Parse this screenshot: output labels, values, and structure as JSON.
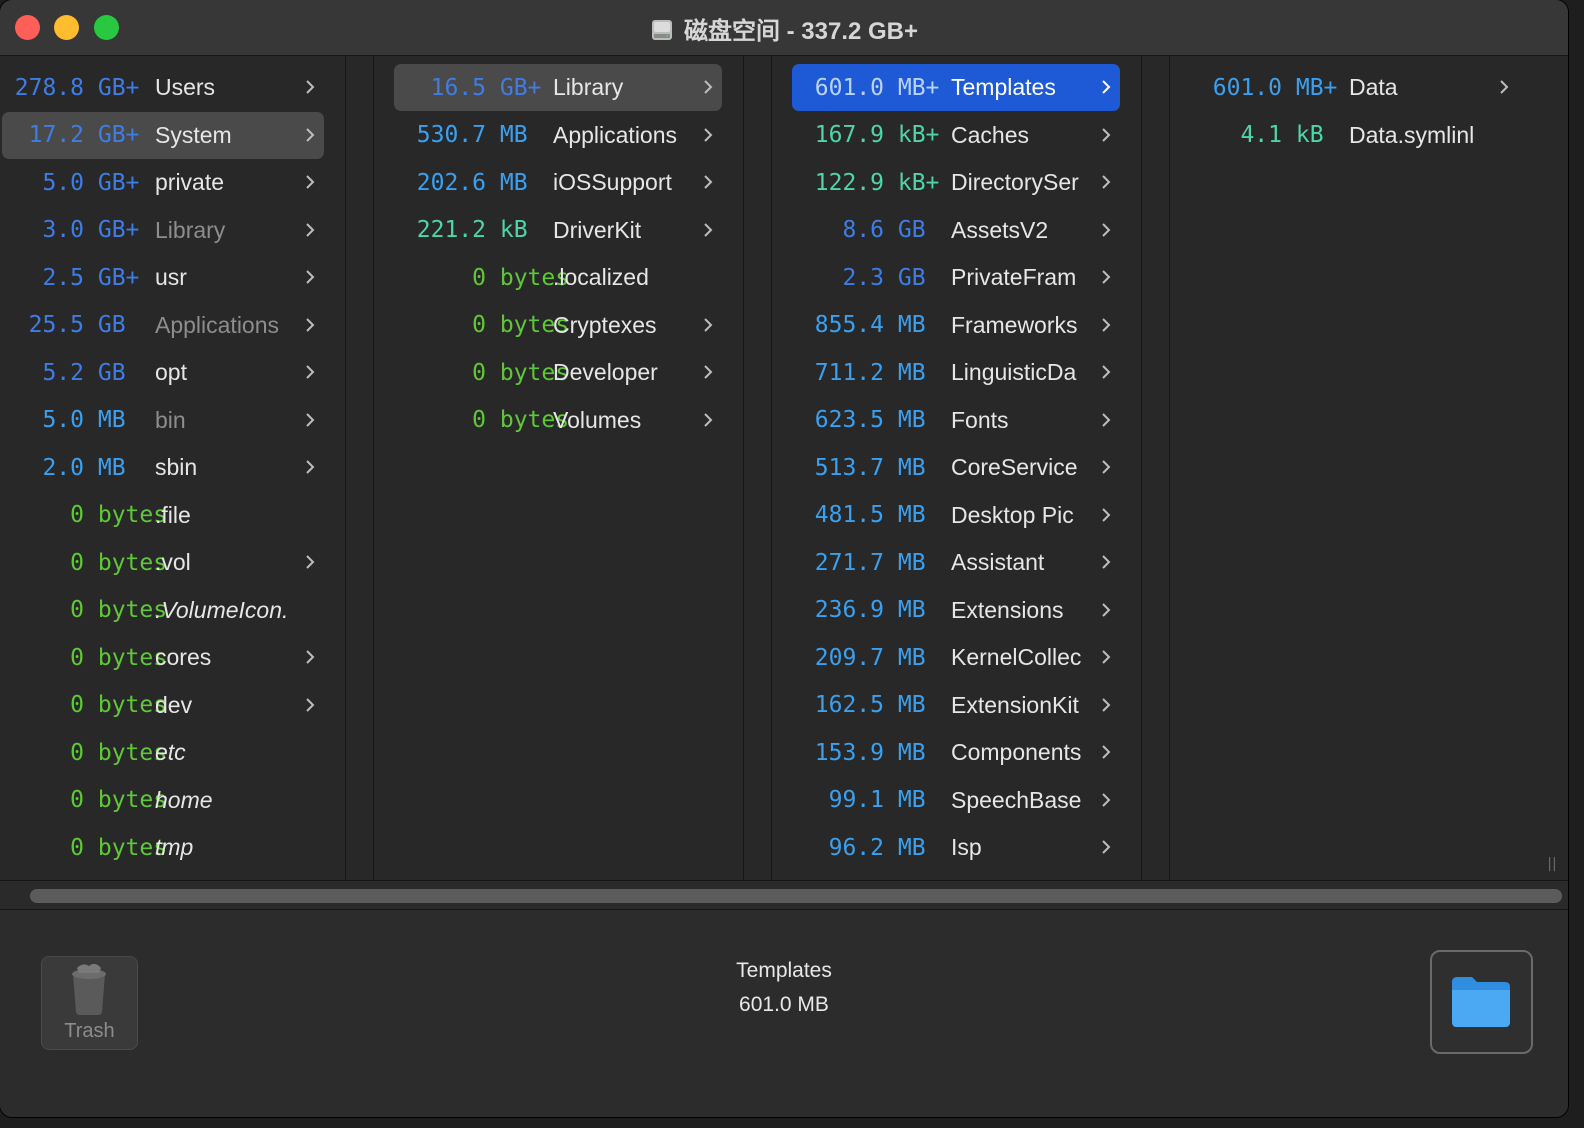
{
  "window": {
    "title": "磁盘空间 - 337.2 GB+"
  },
  "columns": [
    {
      "items": [
        {
          "size_num": "278.8",
          "unit": "GB+",
          "name": "Users",
          "chevron": true,
          "kind": "gbp"
        },
        {
          "size_num": "17.2",
          "unit": "GB+",
          "name": "System",
          "chevron": true,
          "kind": "gbp",
          "selected": "gray"
        },
        {
          "size_num": "5.0",
          "unit": "GB+",
          "name": "private",
          "chevron": true,
          "kind": "gbp"
        },
        {
          "size_num": "3.0",
          "unit": "GB+",
          "name": "Library",
          "chevron": true,
          "kind": "gbp",
          "dim": true
        },
        {
          "size_num": "2.5",
          "unit": "GB+",
          "name": "usr",
          "chevron": true,
          "kind": "gbp"
        },
        {
          "size_num": "25.5",
          "unit": "GB",
          "name": "Applications",
          "chevron": true,
          "kind": "gb",
          "dim": true
        },
        {
          "size_num": "5.2",
          "unit": "GB",
          "name": "opt",
          "chevron": true,
          "kind": "gb"
        },
        {
          "size_num": "5.0",
          "unit": "MB",
          "name": "bin",
          "chevron": true,
          "kind": "mb",
          "dim": true
        },
        {
          "size_num": "2.0",
          "unit": "MB",
          "name": "sbin",
          "chevron": true,
          "kind": "mb"
        },
        {
          "size_num": "0",
          "unit": "bytes",
          "name": ".file",
          "chevron": false,
          "kind": "b"
        },
        {
          "size_num": "0",
          "unit": "bytes",
          "name": ".vol",
          "chevron": true,
          "kind": "b"
        },
        {
          "size_num": "0",
          "unit": "bytes",
          "name": ".VolumeIcon.",
          "chevron": false,
          "kind": "b",
          "italic": true
        },
        {
          "size_num": "0",
          "unit": "bytes",
          "name": "cores",
          "chevron": true,
          "kind": "b"
        },
        {
          "size_num": "0",
          "unit": "bytes",
          "name": "dev",
          "chevron": true,
          "kind": "b"
        },
        {
          "size_num": "0",
          "unit": "bytes",
          "name": "etc",
          "chevron": false,
          "kind": "b",
          "italic": true
        },
        {
          "size_num": "0",
          "unit": "bytes",
          "name": "home",
          "chevron": false,
          "kind": "b",
          "italic": true
        },
        {
          "size_num": "0",
          "unit": "bytes",
          "name": "tmp",
          "chevron": false,
          "kind": "b",
          "italic": true
        }
      ]
    },
    {
      "items": [
        {
          "size_num": "16.5",
          "unit": "GB+",
          "name": "Library",
          "chevron": true,
          "kind": "gbp",
          "selected": "gray"
        },
        {
          "size_num": "530.7",
          "unit": "MB",
          "name": "Applications",
          "chevron": true,
          "kind": "mb"
        },
        {
          "size_num": "202.6",
          "unit": "MB",
          "name": "iOSSupport",
          "chevron": true,
          "kind": "mb"
        },
        {
          "size_num": "221.2",
          "unit": "kB",
          "name": "DriverKit",
          "chevron": true,
          "kind": "kb"
        },
        {
          "size_num": "0",
          "unit": "bytes",
          "name": ".localized",
          "chevron": false,
          "kind": "b"
        },
        {
          "size_num": "0",
          "unit": "bytes",
          "name": "Cryptexes",
          "chevron": true,
          "kind": "b"
        },
        {
          "size_num": "0",
          "unit": "bytes",
          "name": "Developer",
          "chevron": true,
          "kind": "b"
        },
        {
          "size_num": "0",
          "unit": "bytes",
          "name": "Volumes",
          "chevron": true,
          "kind": "b"
        }
      ]
    },
    {
      "items": [
        {
          "size_num": "601.0",
          "unit": "MB+",
          "name": "Templates",
          "chevron": true,
          "kind": "mbp",
          "selected": "blue"
        },
        {
          "size_num": "167.9",
          "unit": "kB+",
          "name": "Caches",
          "chevron": true,
          "kind": "kb"
        },
        {
          "size_num": "122.9",
          "unit": "kB+",
          "name": "DirectorySer",
          "chevron": true,
          "kind": "kb"
        },
        {
          "size_num": "8.6",
          "unit": "GB",
          "name": "AssetsV2",
          "chevron": true,
          "kind": "gb"
        },
        {
          "size_num": "2.3",
          "unit": "GB",
          "name": "PrivateFram",
          "chevron": true,
          "kind": "gb"
        },
        {
          "size_num": "855.4",
          "unit": "MB",
          "name": "Frameworks",
          "chevron": true,
          "kind": "mb"
        },
        {
          "size_num": "711.2",
          "unit": "MB",
          "name": "LinguisticDa",
          "chevron": true,
          "kind": "mb"
        },
        {
          "size_num": "623.5",
          "unit": "MB",
          "name": "Fonts",
          "chevron": true,
          "kind": "mb"
        },
        {
          "size_num": "513.7",
          "unit": "MB",
          "name": "CoreService",
          "chevron": true,
          "kind": "mb"
        },
        {
          "size_num": "481.5",
          "unit": "MB",
          "name": "Desktop Pic",
          "chevron": true,
          "kind": "mb"
        },
        {
          "size_num": "271.7",
          "unit": "MB",
          "name": "Assistant",
          "chevron": true,
          "kind": "mb"
        },
        {
          "size_num": "236.9",
          "unit": "MB",
          "name": "Extensions",
          "chevron": true,
          "kind": "mb"
        },
        {
          "size_num": "209.7",
          "unit": "MB",
          "name": "KernelCollec",
          "chevron": true,
          "kind": "mb"
        },
        {
          "size_num": "162.5",
          "unit": "MB",
          "name": "ExtensionKit",
          "chevron": true,
          "kind": "mb"
        },
        {
          "size_num": "153.9",
          "unit": "MB",
          "name": "Components",
          "chevron": true,
          "kind": "mb"
        },
        {
          "size_num": "99.1",
          "unit": "MB",
          "name": "SpeechBase",
          "chevron": true,
          "kind": "mb"
        },
        {
          "size_num": "96.2",
          "unit": "MB",
          "name": "Isp",
          "chevron": true,
          "kind": "mb"
        }
      ]
    },
    {
      "items": [
        {
          "size_num": "601.0",
          "unit": "MB+",
          "name": "Data",
          "chevron": true,
          "kind": "mbp"
        },
        {
          "size_num": "4.1",
          "unit": "kB",
          "name": "Data.symlinl",
          "chevron": false,
          "kind": "kb"
        }
      ]
    }
  ],
  "bottom": {
    "trash_label": "Trash",
    "selected_name": "Templates",
    "selected_size": "601.0 MB",
    "trash_icon": "trash-can-icon",
    "folder_icon": "folder-icon"
  },
  "colors": {
    "gb_plus": "#3f7de6",
    "mb": "#3aa0ef",
    "kb": "#4ed6a8",
    "bytes": "#5ec935",
    "selection_blue": "#1f5ad6"
  }
}
